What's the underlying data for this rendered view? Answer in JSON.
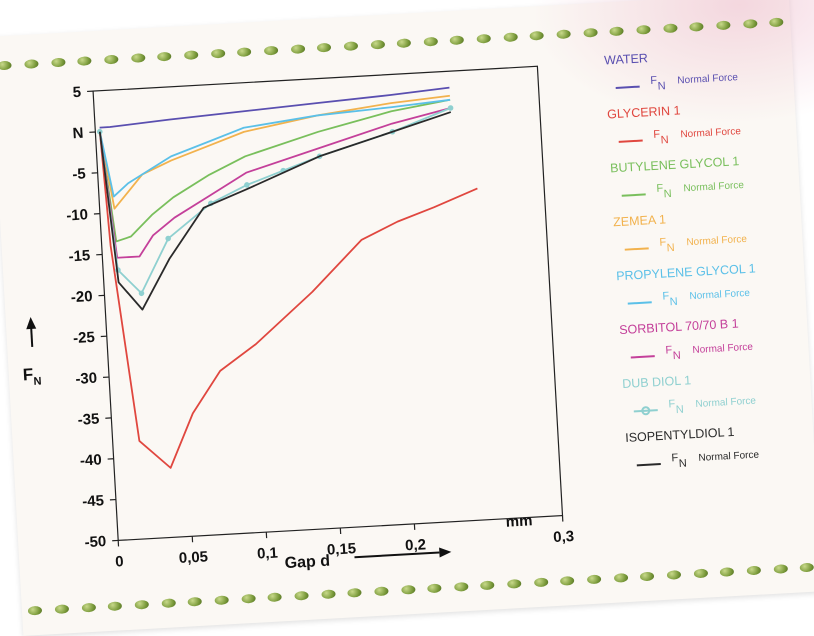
{
  "chart_data": {
    "type": "line",
    "title": "",
    "xlabel": "Gap d",
    "xunit": "mm",
    "ylabel_symbol": "F",
    "ylabel_sub": "N",
    "xlim": [
      0,
      0.3
    ],
    "ylim": [
      -50,
      5
    ],
    "x_ticks": [
      {
        "value": 0,
        "label": "0"
      },
      {
        "value": 0.05,
        "label": "0,05"
      },
      {
        "value": 0.1,
        "label": "0,1"
      },
      {
        "value": 0.15,
        "label": "0,15"
      },
      {
        "value": 0.2,
        "label": "0,2"
      },
      {
        "value": 0.3,
        "label": "0,3"
      }
    ],
    "y_ticks": [
      {
        "value": 5,
        "label": "5"
      },
      {
        "value": 0,
        "label": "N"
      },
      {
        "value": -5,
        "label": "-5"
      },
      {
        "value": -10,
        "label": "-10"
      },
      {
        "value": -15,
        "label": "-15"
      },
      {
        "value": -20,
        "label": "-20"
      },
      {
        "value": -25,
        "label": "-25"
      },
      {
        "value": -30,
        "label": "-30"
      },
      {
        "value": -35,
        "label": "-35"
      },
      {
        "value": -40,
        "label": "-40"
      },
      {
        "value": -45,
        "label": "-45"
      },
      {
        "value": -50,
        "label": "-50"
      }
    ],
    "grid": false,
    "legend_position": "right",
    "series": [
      {
        "name": "WATER",
        "symbol": "F",
        "sub": "N",
        "desc": "Normal Force",
        "color": "#5a4fb0",
        "marker": false,
        "x": [
          0.003,
          0.01,
          0.05,
          0.1,
          0.15,
          0.2,
          0.24
        ],
        "y": [
          0.5,
          0.5,
          1.0,
          1.5,
          2.0,
          2.5,
          3.0
        ]
      },
      {
        "name": "GLYCERIN 1",
        "symbol": "F",
        "sub": "N",
        "desc": "Normal Force",
        "color": "#e0473f",
        "marker": false,
        "x": [
          0.003,
          0.006,
          0.018,
          0.038,
          0.055,
          0.075,
          0.1,
          0.14,
          0.175,
          0.2,
          0.225,
          0.255
        ],
        "y": [
          0,
          -14,
          -38,
          -41.5,
          -35,
          -30,
          -27,
          -21,
          -15,
          -13,
          -11.5,
          -9.5
        ]
      },
      {
        "name": "BUTYLENE GLYCOL 1",
        "symbol": "F",
        "sub": "N",
        "desc": "Normal Force",
        "color": "#79bf5c",
        "marker": false,
        "x": [
          0.003,
          0.01,
          0.02,
          0.035,
          0.05,
          0.075,
          0.1,
          0.15,
          0.2,
          0.24
        ],
        "y": [
          0,
          -13.5,
          -13,
          -10.5,
          -8.5,
          -6,
          -4,
          -1.5,
          0.5,
          1.5
        ]
      },
      {
        "name": "ZEMEA 1",
        "symbol": "F",
        "sub": "N",
        "desc": "Normal Force",
        "color": "#f2b24d",
        "marker": false,
        "x": [
          0.003,
          0.01,
          0.02,
          0.03,
          0.05,
          0.075,
          0.1,
          0.15,
          0.2,
          0.24
        ],
        "y": [
          0,
          -9.5,
          -7.5,
          -5.5,
          -4,
          -2.5,
          -1,
          0.5,
          1.5,
          2.0
        ]
      },
      {
        "name": "PROPYLENE GLYCOL 1",
        "symbol": "F",
        "sub": "N",
        "desc": "Normal Force",
        "color": "#5bc0e8",
        "marker": false,
        "x": [
          0.003,
          0.01,
          0.02,
          0.035,
          0.05,
          0.075,
          0.1,
          0.15,
          0.2,
          0.24
        ],
        "y": [
          0,
          -8,
          -6.5,
          -5,
          -3.5,
          -2,
          -0.5,
          0.5,
          1.0,
          1.5
        ]
      },
      {
        "name": "SORBITOL 70/70 B 1",
        "symbol": "F",
        "sub": "N",
        "desc": "Normal Force",
        "color": "#c4409a",
        "marker": false,
        "x": [
          0.003,
          0.01,
          0.025,
          0.035,
          0.05,
          0.075,
          0.1,
          0.15,
          0.2,
          0.24
        ],
        "y": [
          0,
          -15.5,
          -15.5,
          -13,
          -11,
          -8.5,
          -6,
          -3.5,
          -1,
          0.5
        ]
      },
      {
        "name": "DUB DIOL 1",
        "symbol": "F",
        "sub": "N",
        "desc": "Normal Force",
        "color": "#8fd0d0",
        "marker": true,
        "x": [
          0.003,
          0.01,
          0.025,
          0.045,
          0.075,
          0.1,
          0.125,
          0.15,
          0.2,
          0.24
        ],
        "y": [
          0,
          -17,
          -20,
          -13.5,
          -9.5,
          -7.5,
          -6,
          -4.5,
          -2,
          0.5
        ]
      },
      {
        "name": "ISOPENTYLDIOL 1",
        "symbol": "F",
        "sub": "N",
        "desc": "Normal Force",
        "color": "#2a2a2a",
        "marker": false,
        "x": [
          0.003,
          0.01,
          0.025,
          0.045,
          0.07,
          0.1,
          0.15,
          0.2,
          0.24
        ],
        "y": [
          0,
          -18.5,
          -22,
          -16,
          -10,
          -8,
          -4.5,
          -2,
          0
        ]
      }
    ]
  }
}
